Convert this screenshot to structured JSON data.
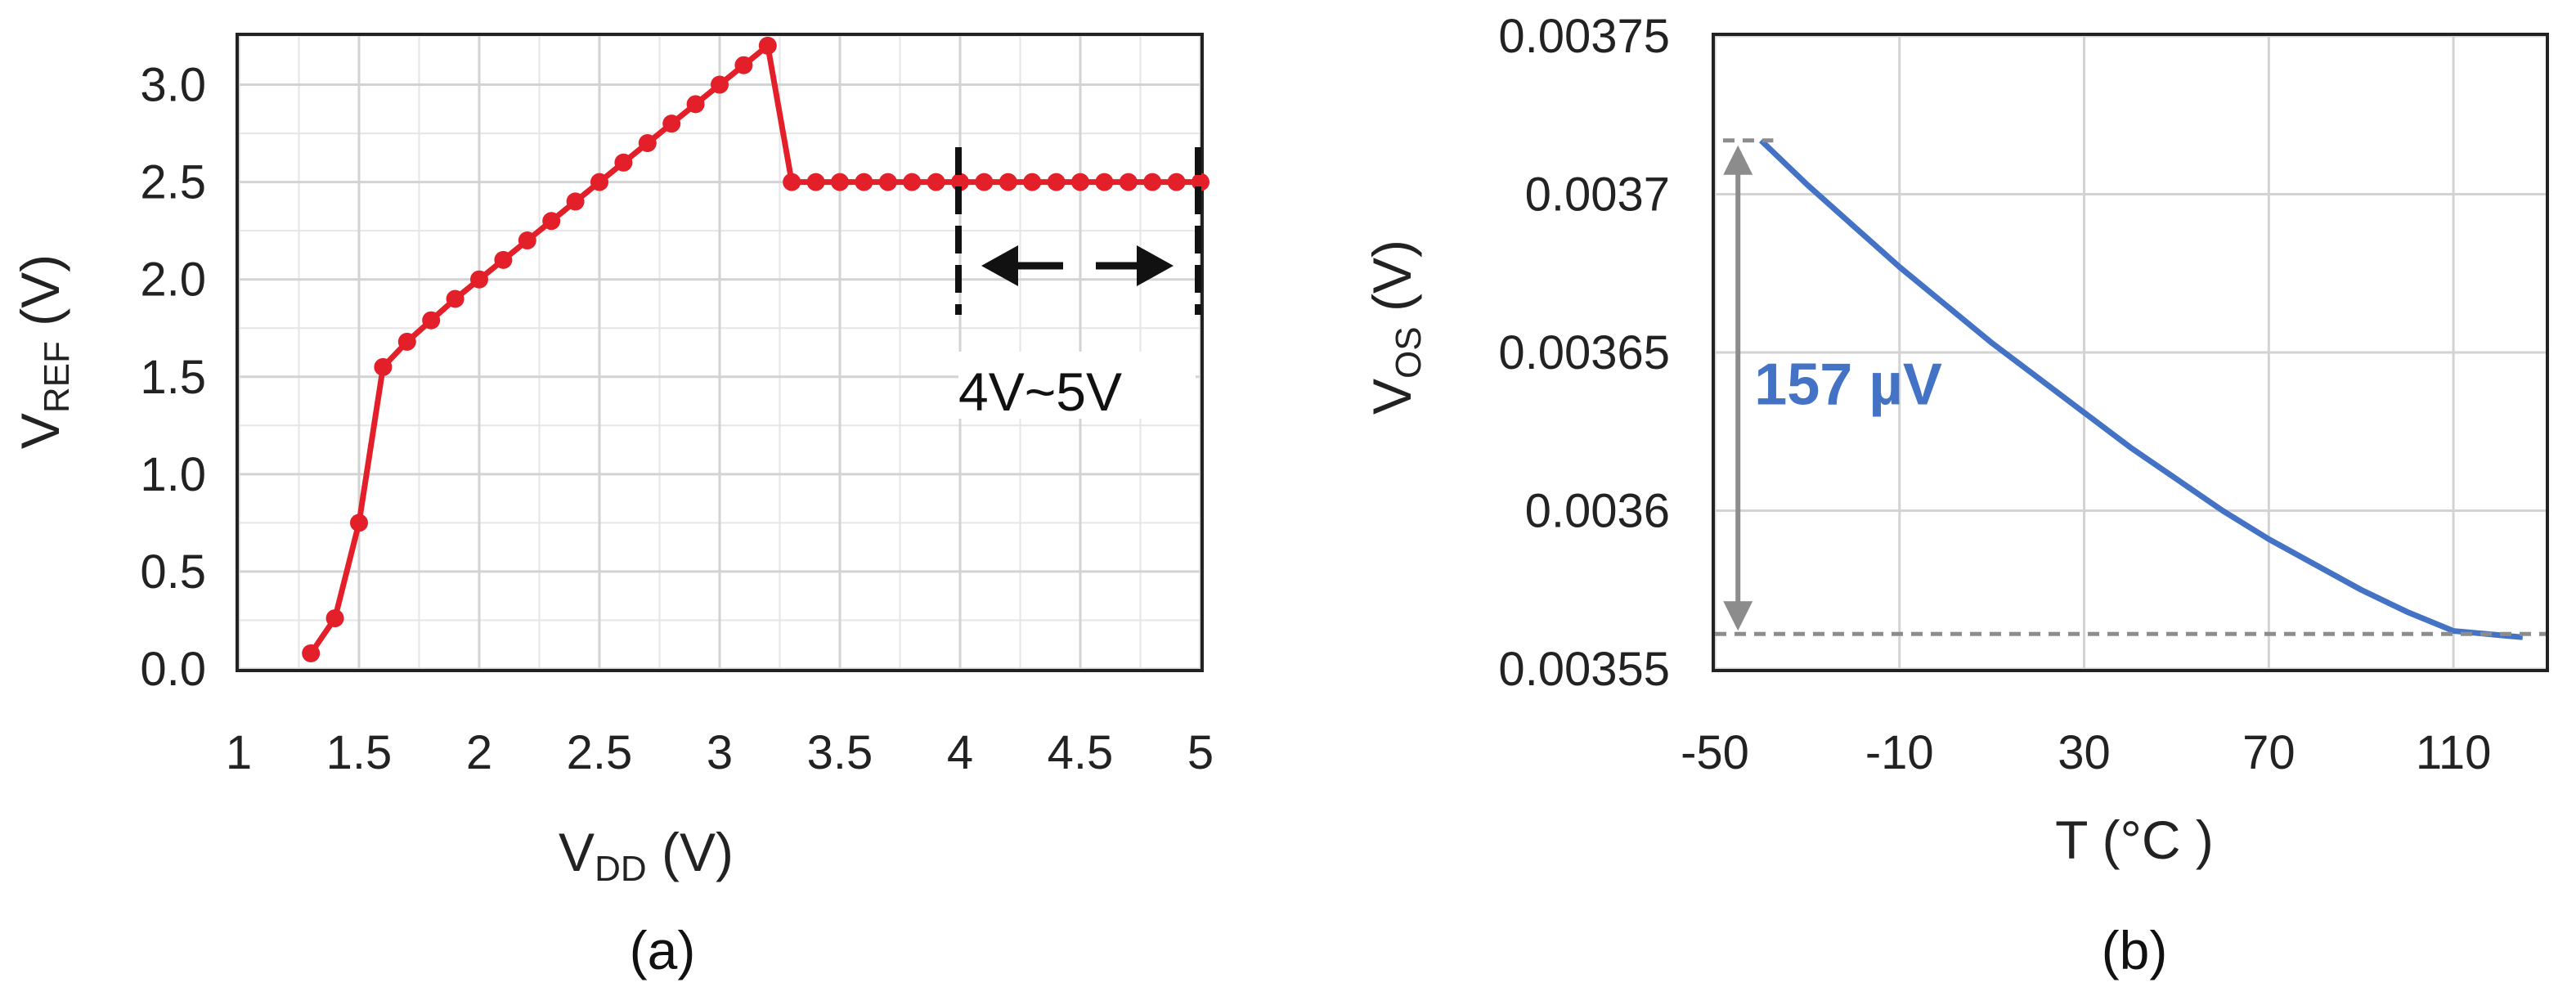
{
  "colors": {
    "series_a": "#e3202a",
    "series_b": "#4472c4",
    "grid": "#d3d3d3",
    "annotation_gray": "#8c8c8c"
  },
  "chart_data": [
    {
      "type": "line",
      "caption": "(a)",
      "xlabel": {
        "main": "V",
        "sub": "DD",
        "unit": " (V)"
      },
      "ylabel": {
        "main": "V",
        "sub": "REF",
        "unit": " (V)"
      },
      "xlim": [
        1,
        5
      ],
      "ylim": [
        0,
        3.25
      ],
      "xticks": [
        1,
        1.5,
        2,
        2.5,
        3,
        3.5,
        4,
        4.5,
        5
      ],
      "xtick_labels": [
        "1",
        "1.5",
        "2",
        "2.5",
        "3",
        "3.5",
        "4",
        "4.5",
        "5"
      ],
      "yticks": [
        0,
        0.5,
        1,
        1.5,
        2,
        2.5,
        3
      ],
      "ytick_labels": [
        "0.0",
        "0.5",
        "1.0",
        "1.5",
        "2.0",
        "2.5",
        "3.0"
      ],
      "grid": true,
      "markers": true,
      "series": [
        {
          "x": [
            1.3,
            1.4,
            1.5,
            1.6,
            1.7,
            1.8,
            1.9,
            2.0,
            2.1,
            2.2,
            2.3,
            2.4,
            2.5,
            2.6,
            2.7,
            2.8,
            2.9,
            3.0,
            3.1,
            3.2,
            3.3,
            3.4,
            3.5,
            3.6,
            3.7,
            3.8,
            3.9,
            4.0,
            4.1,
            4.2,
            4.3,
            4.4,
            4.5,
            4.6,
            4.7,
            4.8,
            4.9,
            5.0
          ],
          "y": [
            0.08,
            0.26,
            0.75,
            1.55,
            1.68,
            1.79,
            1.9,
            2.0,
            2.1,
            2.2,
            2.3,
            2.4,
            2.5,
            2.6,
            2.7,
            2.8,
            2.9,
            3.0,
            3.1,
            3.2,
            2.5,
            2.5,
            2.5,
            2.5,
            2.5,
            2.5,
            2.5,
            2.5,
            2.5,
            2.5,
            2.5,
            2.5,
            2.5,
            2.5,
            2.5,
            2.5,
            2.5,
            2.5
          ]
        }
      ],
      "annotation": {
        "text": "4V~5V",
        "from": 4,
        "to": 5
      }
    },
    {
      "type": "line",
      "caption": "(b)",
      "xlabel": {
        "main": "T (°C )"
      },
      "ylabel": {
        "main": "V",
        "sub": "OS",
        "unit": " (V)"
      },
      "xlim": [
        -50,
        130
      ],
      "ylim": [
        0.00355,
        0.00375
      ],
      "xticks": [
        -50,
        -10,
        30,
        70,
        110
      ],
      "xtick_labels": [
        "-50",
        "-10",
        "30",
        "70",
        "110"
      ],
      "yticks": [
        0.00355,
        0.0036,
        0.00365,
        0.0037,
        0.00375
      ],
      "ytick_labels": [
        "0.00355",
        "0.0036",
        "0.00365",
        "0.0037",
        "0.00375"
      ],
      "grid": true,
      "markers": false,
      "series": [
        {
          "x": [
            -40,
            -30,
            -20,
            -10,
            0,
            10,
            20,
            30,
            40,
            50,
            60,
            70,
            80,
            90,
            100,
            110,
            125
          ],
          "y": [
            0.003717,
            0.003703,
            0.00369,
            0.003677,
            0.003665,
            0.003653,
            0.003642,
            0.003631,
            0.00362,
            0.00361,
            0.0036,
            0.003591,
            0.003583,
            0.003575,
            0.003568,
            0.003562,
            0.00356
          ]
        }
      ],
      "annotation": {
        "text": "157 µV",
        "top": 0.003717,
        "bottom": 0.00356
      }
    }
  ]
}
